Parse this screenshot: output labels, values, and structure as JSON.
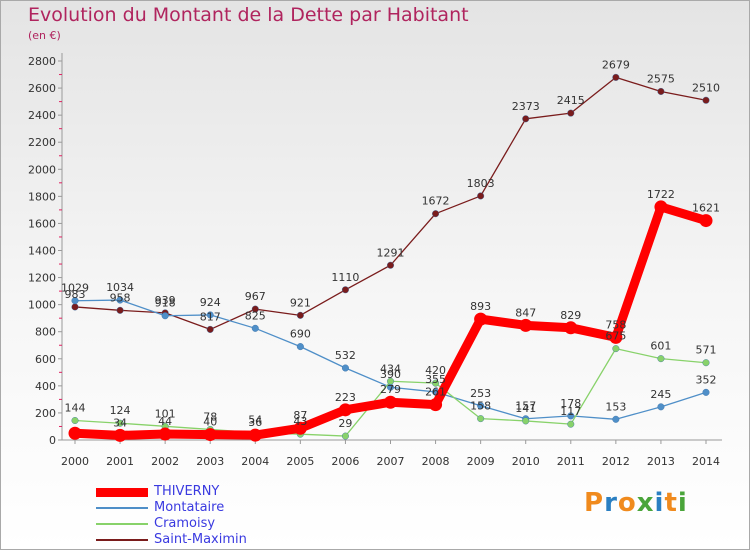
{
  "title": "Evolution du Montant de la Dette par Habitant",
  "subtitle": "(en €)",
  "logo": {
    "text": "Proxiti",
    "colors": [
      "#f08a1d",
      "#2a7fc2",
      "#f08a1d",
      "#4aa53a",
      "#2a7fc2",
      "#f08a1d",
      "#4aa53a"
    ]
  },
  "chart_data": {
    "type": "line",
    "x": [
      2000,
      2001,
      2002,
      2003,
      2004,
      2005,
      2006,
      2007,
      2008,
      2009,
      2010,
      2011,
      2012,
      2013,
      2014
    ],
    "ylim": [
      0,
      2800
    ],
    "yticks": [
      0,
      200,
      400,
      600,
      800,
      1000,
      1200,
      1400,
      1600,
      1800,
      2000,
      2200,
      2400,
      2600,
      2800
    ],
    "grid": false,
    "legend_position": "bottom-left",
    "series": [
      {
        "name": "THIVERNY",
        "color": "#ff0000",
        "width": 9,
        "values": [
          50,
          34,
          44,
          40,
          36,
          87,
          223,
          279,
          261,
          893,
          847,
          829,
          758,
          1722,
          1621
        ],
        "labels": [
          "",
          "34",
          "44",
          "40",
          "36",
          "87",
          "223",
          "279",
          "261",
          "893",
          "847",
          "829",
          "758",
          "1722",
          "1621"
        ]
      },
      {
        "name": "Montataire",
        "color": "#4f8fc8",
        "width": 1.3,
        "values": [
          1029,
          1034,
          918,
          924,
          825,
          690,
          532,
          390,
          355,
          253,
          157,
          178,
          153,
          245,
          352
        ],
        "labels": [
          "1029",
          "1034",
          "918",
          "924",
          "825",
          "690",
          "532",
          "390",
          "355",
          "253",
          "157",
          "178",
          "153",
          "245",
          "352"
        ]
      },
      {
        "name": "Cramoisy",
        "color": "#88d26a",
        "width": 1.3,
        "values": [
          144,
          124,
          101,
          78,
          54,
          43,
          29,
          434,
          420,
          158,
          141,
          117,
          675,
          601,
          571
        ],
        "labels": [
          "144",
          "124",
          "101",
          "78",
          "54",
          "43",
          "29",
          "434",
          "420",
          "158",
          "141",
          "117",
          "675",
          "601",
          "571"
        ]
      },
      {
        "name": "Saint-Maximin",
        "color": "#7a1c1c",
        "width": 1.3,
        "values": [
          983,
          958,
          939,
          817,
          967,
          921,
          1110,
          1291,
          1672,
          1803,
          2373,
          2415,
          2679,
          2575,
          2510
        ],
        "labels": [
          "983",
          "958",
          "939",
          "817",
          "967",
          "921",
          "1110",
          "1291",
          "1672",
          "1803",
          "2373",
          "2415",
          "2679",
          "2575",
          "2510"
        ]
      }
    ]
  }
}
